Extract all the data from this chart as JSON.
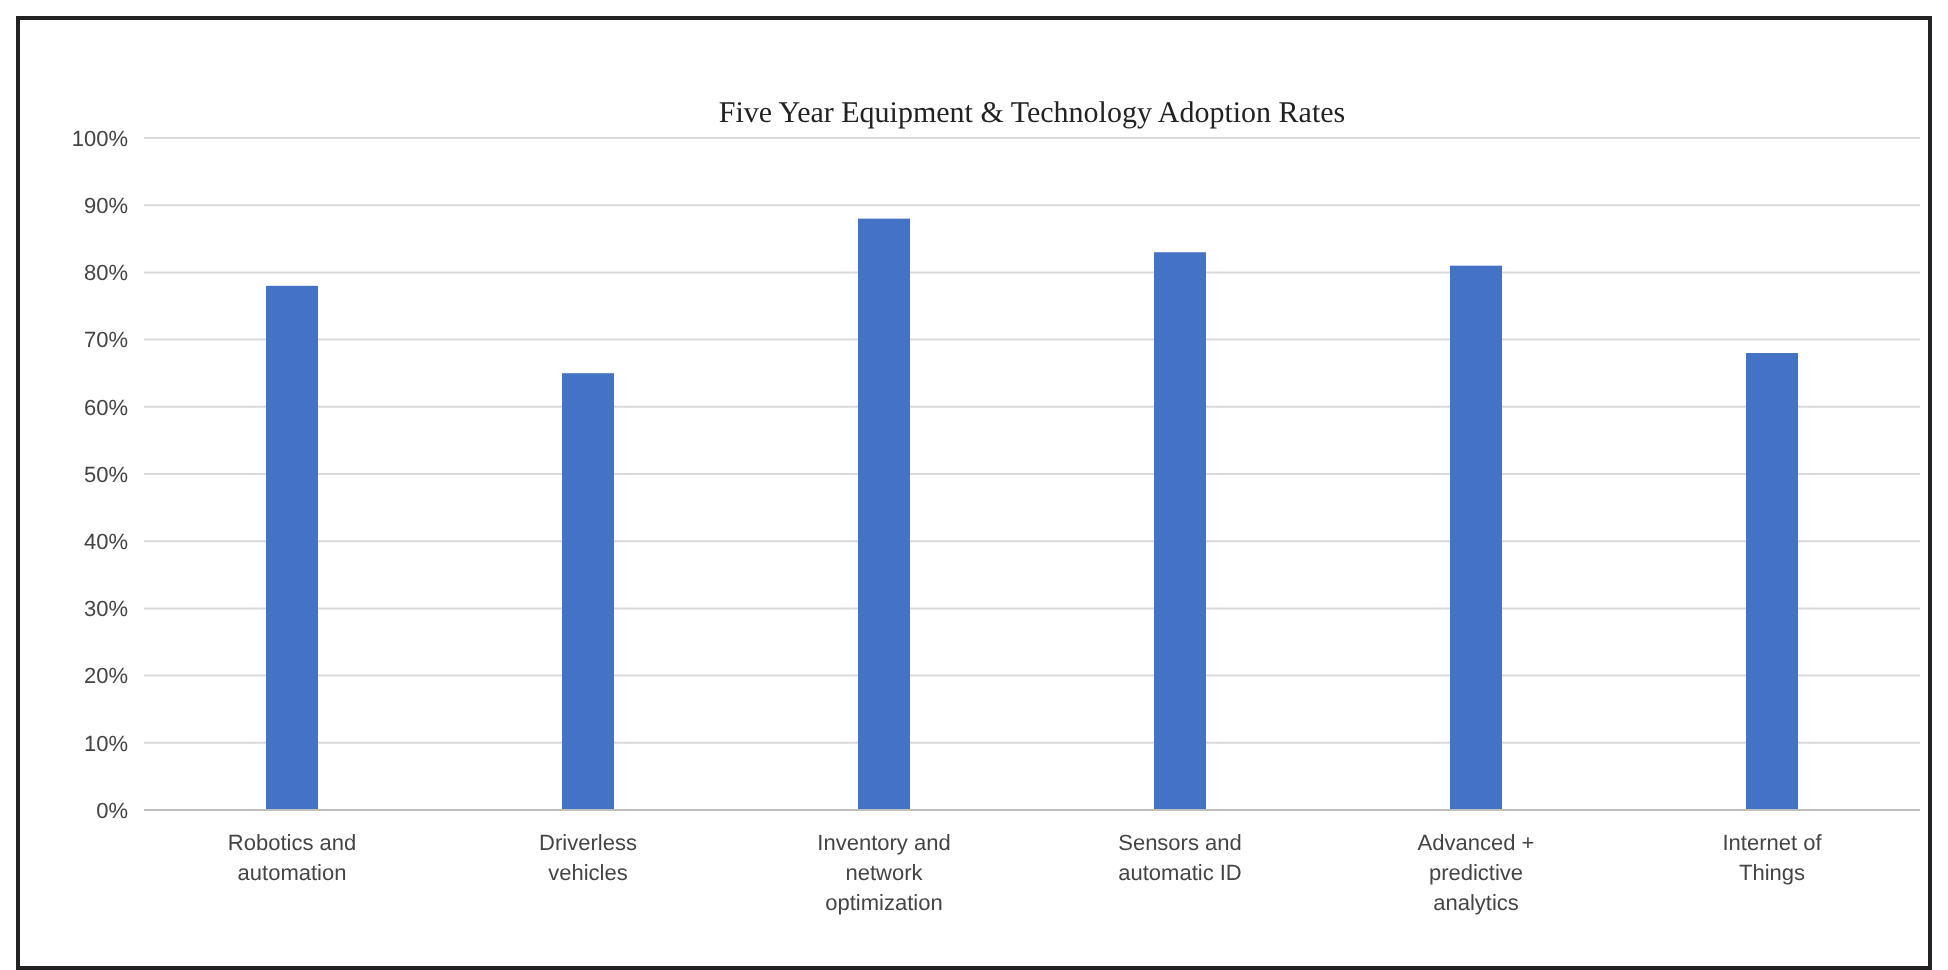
{
  "chart_data": {
    "type": "bar",
    "title": "Five Year Equipment & Technology Adoption Rates",
    "categories": [
      "Robotics and automation",
      "Driverless vehicles",
      "Inventory and network optimization",
      "Sensors and automatic ID",
      "Advanced + predictive analytics",
      "Internet of Things"
    ],
    "values": [
      78,
      65,
      88,
      83,
      81,
      68
    ],
    "color": "#4472c4",
    "ylim": [
      0,
      100
    ],
    "yticks": [
      {
        "value": 0,
        "label": "0%"
      },
      {
        "value": 10,
        "label": "10%"
      },
      {
        "value": 20,
        "label": "20%"
      },
      {
        "value": 30,
        "label": "30%"
      },
      {
        "value": 40,
        "label": "40%"
      },
      {
        "value": 50,
        "label": "50%"
      },
      {
        "value": 60,
        "label": "60%"
      },
      {
        "value": 70,
        "label": "70%"
      },
      {
        "value": 80,
        "label": "80%"
      },
      {
        "value": 90,
        "label": "90%"
      },
      {
        "value": 100,
        "label": "100%"
      }
    ],
    "grid": "y"
  }
}
